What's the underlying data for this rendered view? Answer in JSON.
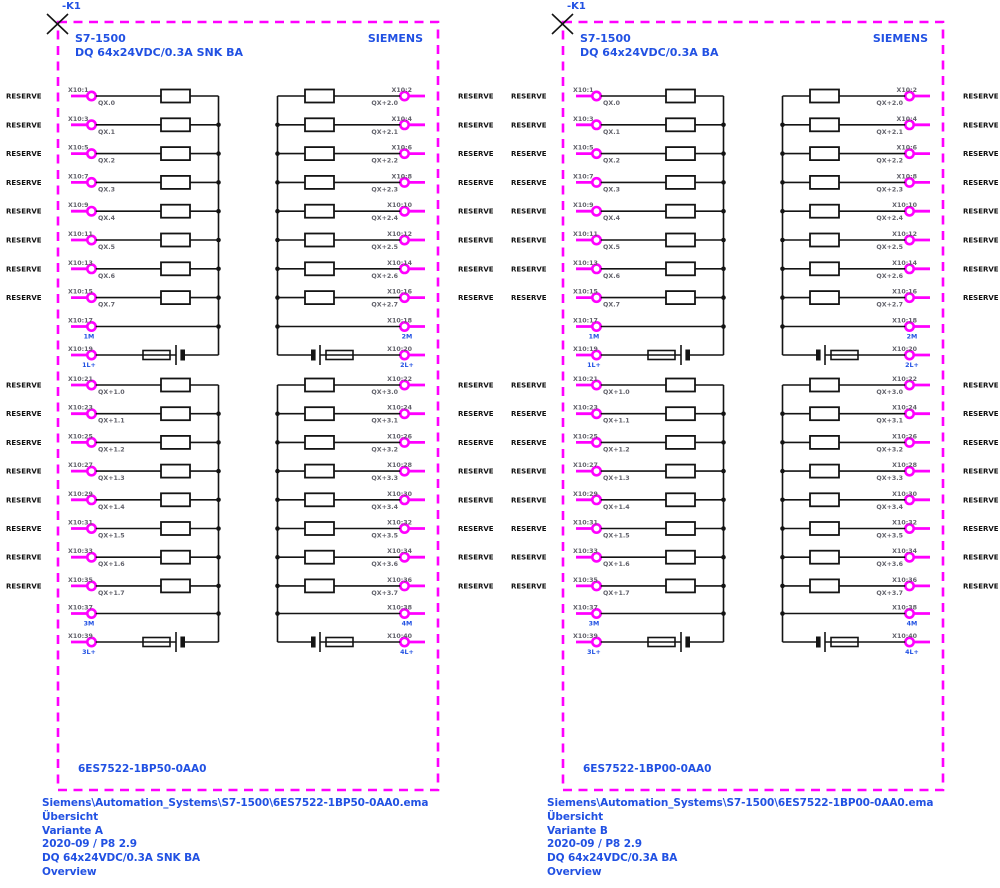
{
  "reserve_label": "RESERVE",
  "colors": {
    "magenta": "#FF00FF",
    "blue": "#2151E3",
    "gray": "#63636C",
    "wire": "#141414"
  },
  "panels": [
    {
      "device_tag": "-K1",
      "title": "S7-1500",
      "subtitle": "DQ 64x24VDC/0.3A SNK BA",
      "brand": "SIEMENS",
      "part_number": "6ES7522-1BP50-0AA0",
      "footer": [
        "Siemens\\Automation_Systems\\S7-1500\\6ES7522-1BP50-0AA0.ema",
        "Übersicht",
        "Variante A",
        "2020-09 / P8 2.9",
        "DQ 64x24VDC/0.3A SNK BA",
        "Overview"
      ]
    },
    {
      "device_tag": "-K1",
      "title": "S7-1500",
      "subtitle": "DQ 64x24VDC/0.3A BA",
      "brand": "SIEMENS",
      "part_number": "6ES7522-1BP00-0AA0",
      "footer": [
        "Siemens\\Automation_Systems\\S7-1500\\6ES7522-1BP00-0AA0.ema",
        "Übersicht",
        "Variante B",
        "2020-09 / P8 2.9",
        "DQ 64x24VDC/0.3A BA",
        "Overview"
      ]
    }
  ],
  "terminals": {
    "left": {
      "outputs1": [
        {
          "pin": "X10:1",
          "address": "QX.0"
        },
        {
          "pin": "X10:3",
          "address": "QX.1"
        },
        {
          "pin": "X10:5",
          "address": "QX.2"
        },
        {
          "pin": "X10:7",
          "address": "QX.3"
        },
        {
          "pin": "X10:9",
          "address": "QX.4"
        },
        {
          "pin": "X10:11",
          "address": "QX.5"
        },
        {
          "pin": "X10:13",
          "address": "QX.6"
        },
        {
          "pin": "X10:15",
          "address": "QX.7"
        }
      ],
      "power1": [
        {
          "pin": "X10:17",
          "label": "1M"
        },
        {
          "pin": "X10:19",
          "label": "1L+"
        }
      ],
      "outputs2": [
        {
          "pin": "X10:21",
          "address": "QX+1.0"
        },
        {
          "pin": "X10:23",
          "address": "QX+1.1"
        },
        {
          "pin": "X10:25",
          "address": "QX+1.2"
        },
        {
          "pin": "X10:27",
          "address": "QX+1.3"
        },
        {
          "pin": "X10:29",
          "address": "QX+1.4"
        },
        {
          "pin": "X10:31",
          "address": "QX+1.5"
        },
        {
          "pin": "X10:33",
          "address": "QX+1.6"
        },
        {
          "pin": "X10:35",
          "address": "QX+1.7"
        }
      ],
      "power2": [
        {
          "pin": "X10:37",
          "label": "3M"
        },
        {
          "pin": "X10:39",
          "label": "3L+"
        }
      ]
    },
    "right": {
      "outputs1": [
        {
          "pin": "X10:2",
          "address": "QX+2.0"
        },
        {
          "pin": "X10:4",
          "address": "QX+2.1"
        },
        {
          "pin": "X10:6",
          "address": "QX+2.2"
        },
        {
          "pin": "X10:8",
          "address": "QX+2.3"
        },
        {
          "pin": "X10:10",
          "address": "QX+2.4"
        },
        {
          "pin": "X10:12",
          "address": "QX+2.5"
        },
        {
          "pin": "X10:14",
          "address": "QX+2.6"
        },
        {
          "pin": "X10:16",
          "address": "QX+2.7"
        }
      ],
      "power1": [
        {
          "pin": "X10:18",
          "label": "2M"
        },
        {
          "pin": "X10:20",
          "label": "2L+"
        }
      ],
      "outputs2": [
        {
          "pin": "X10:22",
          "address": "QX+3.0"
        },
        {
          "pin": "X10:24",
          "address": "QX+3.1"
        },
        {
          "pin": "X10:26",
          "address": "QX+3.2"
        },
        {
          "pin": "X10:28",
          "address": "QX+3.3"
        },
        {
          "pin": "X10:30",
          "address": "QX+3.4"
        },
        {
          "pin": "X10:32",
          "address": "QX+3.5"
        },
        {
          "pin": "X10:34",
          "address": "QX+3.6"
        },
        {
          "pin": "X10:36",
          "address": "QX+3.7"
        }
      ],
      "power2": [
        {
          "pin": "X10:38",
          "label": "4M"
        },
        {
          "pin": "X10:40",
          "label": "4L+"
        }
      ]
    }
  }
}
